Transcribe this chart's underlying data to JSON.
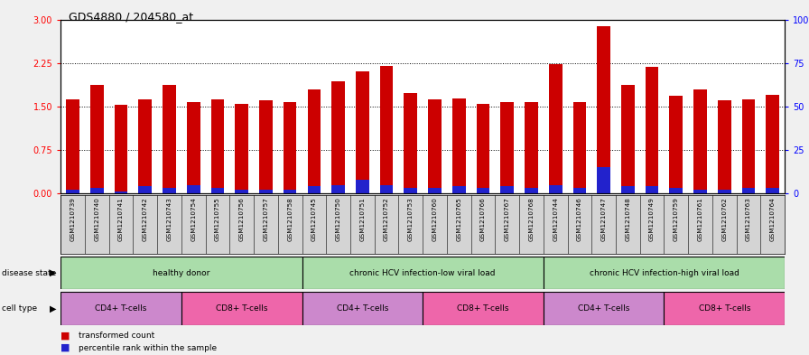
{
  "title": "GDS4880 / 204580_at",
  "samples": [
    "GSM1210739",
    "GSM1210740",
    "GSM1210741",
    "GSM1210742",
    "GSM1210743",
    "GSM1210754",
    "GSM1210755",
    "GSM1210756",
    "GSM1210757",
    "GSM1210758",
    "GSM1210745",
    "GSM1210750",
    "GSM1210751",
    "GSM1210752",
    "GSM1210753",
    "GSM1210760",
    "GSM1210765",
    "GSM1210766",
    "GSM1210767",
    "GSM1210768",
    "GSM1210744",
    "GSM1210746",
    "GSM1210747",
    "GSM1210748",
    "GSM1210749",
    "GSM1210759",
    "GSM1210761",
    "GSM1210762",
    "GSM1210763",
    "GSM1210764"
  ],
  "transformed_count": [
    1.62,
    1.87,
    1.53,
    1.63,
    1.87,
    1.57,
    1.63,
    1.55,
    1.6,
    1.58,
    1.8,
    1.93,
    2.1,
    2.2,
    1.73,
    1.62,
    1.64,
    1.55,
    1.58,
    1.58,
    2.23,
    1.57,
    2.88,
    1.88,
    2.18,
    1.68,
    1.8,
    1.6,
    1.62,
    1.7
  ],
  "percentile_rank": [
    2,
    3,
    1,
    4,
    3,
    5,
    3,
    2,
    2,
    2,
    4,
    5,
    8,
    5,
    3,
    3,
    4,
    3,
    4,
    3,
    5,
    3,
    15,
    4,
    4,
    3,
    2,
    2,
    3,
    3
  ],
  "ylim_left": [
    0,
    3
  ],
  "ylim_right": [
    0,
    100
  ],
  "yticks_left": [
    0,
    0.75,
    1.5,
    2.25,
    3
  ],
  "yticks_right": [
    0,
    25,
    50,
    75,
    100
  ],
  "bar_color_red": "#CC0000",
  "bar_color_blue": "#2222CC",
  "background_color": "#f0f0f0",
  "plot_bg": "#ffffff",
  "label_bg": "#d4d4d4",
  "disease_color": "#aaddaa",
  "cd4_color": "#cc88cc",
  "cd8_color": "#ee66aa"
}
